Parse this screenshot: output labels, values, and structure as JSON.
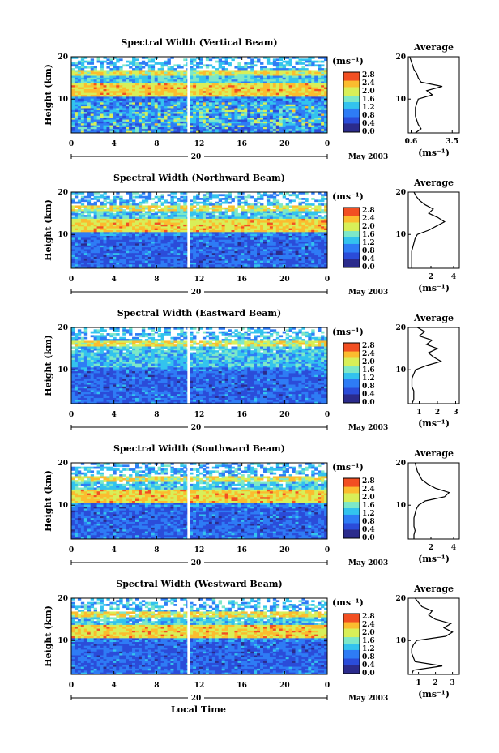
{
  "figure": {
    "date_label": "May 2003",
    "day_label": "20",
    "xlabel": "Local Time",
    "avg_title": "Average",
    "avg_xlabel": "(ms⁻¹)",
    "colorbar_unit": "(ms⁻¹)",
    "colorbar_ticks": [
      "2.8",
      "2.4",
      "2.0",
      "1.6",
      "1.2",
      "0.8",
      "0.4",
      "0.0"
    ],
    "colormap": [
      "#2b2b8c",
      "#2b4cd9",
      "#2e7cf5",
      "#33c3ee",
      "#7de8c8",
      "#d8ef58",
      "#fbbc2f",
      "#f24f22"
    ]
  },
  "chart_data": [
    {
      "type": "heatmap",
      "title": "Spectral Width (Vertical Beam)",
      "ylabel": "Height (km)",
      "xticks": [
        "0",
        "4",
        "8",
        "12",
        "16",
        "20",
        "0"
      ],
      "yticks": [
        "20",
        "10"
      ],
      "xlim": [
        0,
        24
      ],
      "ylim": [
        2,
        20
      ],
      "colorbar_range": [
        0.0,
        3.0
      ],
      "profile": {
        "xticks": [
          "0.6",
          "3.5"
        ],
        "xlim": [
          0.4,
          4.0
        ],
        "heights": [
          2,
          3,
          4,
          5,
          6,
          7,
          8,
          9,
          10,
          11,
          12,
          13,
          14,
          15,
          16,
          17,
          18,
          19,
          20
        ],
        "values": [
          0.9,
          1.3,
          1.1,
          1.0,
          0.9,
          0.9,
          0.9,
          1.0,
          1.1,
          2.1,
          1.7,
          2.8,
          1.3,
          1.1,
          1.0,
          0.8,
          0.7,
          0.6,
          0.5
        ]
      }
    },
    {
      "type": "heatmap",
      "title": "Spectral Width (Northward Beam)",
      "ylabel": "Height (km)",
      "xticks": [
        "0",
        "4",
        "8",
        "12",
        "16",
        "20",
        "0"
      ],
      "yticks": [
        "20",
        "10"
      ],
      "xlim": [
        0,
        24
      ],
      "ylim": [
        2,
        20
      ],
      "colorbar_range": [
        0.0,
        3.0
      ],
      "profile": {
        "xticks": [
          "2",
          "4"
        ],
        "xlim": [
          0,
          4.5
        ],
        "heights": [
          2,
          3,
          4,
          5,
          6,
          7,
          8,
          9,
          10,
          11,
          12,
          13,
          14,
          15,
          16,
          17,
          18,
          19,
          20
        ],
        "values": [
          0.3,
          0.3,
          0.3,
          0.3,
          0.3,
          0.4,
          0.5,
          0.6,
          0.8,
          1.8,
          2.5,
          3.2,
          2.6,
          1.8,
          2.2,
          1.5,
          1.0,
          0.7,
          0.5
        ]
      }
    },
    {
      "type": "heatmap",
      "title": "Spectral Width (Eastward Beam)",
      "ylabel": "Height (km)",
      "xticks": [
        "0",
        "4",
        "8",
        "12",
        "16",
        "20",
        "0"
      ],
      "yticks": [
        "20",
        "10"
      ],
      "xlim": [
        0,
        24
      ],
      "ylim": [
        2,
        20
      ],
      "colorbar_range": [
        0.0,
        3.0
      ],
      "profile": {
        "xticks": [
          "1",
          "2",
          "3"
        ],
        "xlim": [
          0.4,
          3.2
        ],
        "heights": [
          2,
          3,
          4,
          5,
          6,
          7,
          8,
          9,
          10,
          11,
          12,
          13,
          14,
          15,
          16,
          17,
          18,
          19,
          20
        ],
        "values": [
          0.6,
          0.7,
          0.7,
          0.7,
          0.6,
          0.6,
          0.6,
          0.7,
          0.8,
          1.4,
          2.2,
          1.8,
          1.5,
          2.0,
          1.4,
          1.7,
          1.0,
          1.3,
          0.9
        ]
      }
    },
    {
      "type": "heatmap",
      "title": "Spectral Width (Southward Beam)",
      "ylabel": "Height (km)",
      "xticks": [
        "0",
        "4",
        "8",
        "12",
        "16",
        "20",
        "0"
      ],
      "yticks": [
        "20",
        "10"
      ],
      "xlim": [
        0,
        24
      ],
      "ylim": [
        2,
        20
      ],
      "colorbar_range": [
        0.0,
        3.0
      ],
      "profile": {
        "xticks": [
          "2",
          "4"
        ],
        "xlim": [
          0,
          4.5
        ],
        "heights": [
          2,
          3,
          4,
          5,
          6,
          7,
          8,
          9,
          10,
          11,
          12,
          13,
          14,
          15,
          16,
          17,
          18,
          19,
          20
        ],
        "values": [
          0.5,
          0.5,
          0.6,
          0.5,
          0.5,
          0.5,
          0.6,
          0.7,
          0.9,
          1.5,
          3.2,
          3.6,
          2.4,
          1.7,
          1.2,
          1.0,
          0.8,
          0.7,
          0.6
        ]
      }
    },
    {
      "type": "heatmap",
      "title": "Spectral Width (Westward Beam)",
      "ylabel": "Height (km)",
      "xticks": [
        "0",
        "4",
        "8",
        "12",
        "16",
        "20",
        "0"
      ],
      "yticks": [
        "20",
        "10"
      ],
      "xlim": [
        0,
        24
      ],
      "ylim": [
        2,
        20
      ],
      "colorbar_range": [
        0.0,
        3.0
      ],
      "profile": {
        "xticks": [
          "1",
          "2",
          "3"
        ],
        "xlim": [
          0.4,
          3.4
        ],
        "heights": [
          2,
          3,
          4,
          5,
          6,
          7,
          8,
          9,
          10,
          11,
          12,
          13,
          14,
          15,
          16,
          17,
          18,
          19,
          20
        ],
        "values": [
          0.6,
          0.7,
          2.4,
          0.8,
          0.7,
          0.6,
          0.6,
          0.7,
          0.9,
          2.6,
          3.0,
          2.5,
          2.9,
          2.0,
          1.6,
          1.8,
          1.2,
          1.0,
          0.8
        ]
      }
    }
  ]
}
